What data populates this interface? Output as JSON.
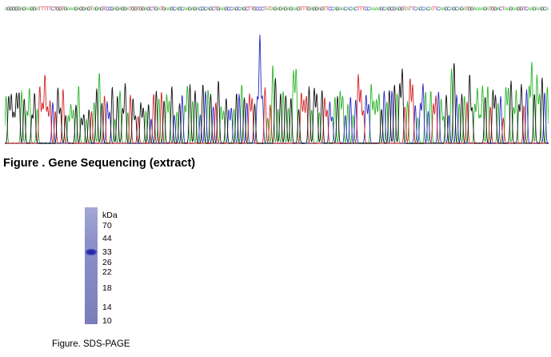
{
  "sequence": {
    "bases": "AGGGGGAGAAGGATTTTTCTGGTGAAAGAGGAGTAGAGTCCGAGAGGATGGTGGAGCTGATGAAGCAGCAAGAGACGCAGCTGAAGCCAGCAGCTTGCCCTATAGAGAGAGAAGTTTGAGGAGTTCCAGAACACACTTTCCAAAAGCAGCGAGGTATTCACCACATTCAAGCAGCAGATGGAAAAGATGGACTAAGAAGGTCAAGAAGCA",
    "colors": {
      "A": "#2db52d",
      "C": "#2929c8",
      "G": "#141414",
      "T": "#d42424"
    }
  },
  "captions": {
    "gene_sequencing": "Figure . Gene Sequencing (extract)",
    "sds_page": "Figure. SDS-PAGE"
  },
  "sds_page": {
    "unit": "kDa",
    "markers": [
      "70",
      "44",
      "33",
      "26",
      "22",
      "18",
      "14",
      "10"
    ],
    "band_marker": "33"
  }
}
